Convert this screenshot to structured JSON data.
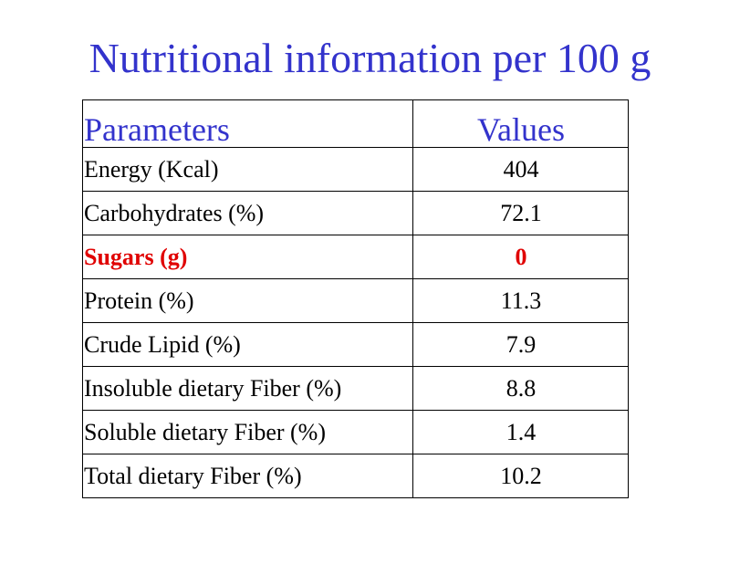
{
  "title": "Nutritional information per 100 g",
  "table": {
    "headers": [
      "Parameters",
      "Values"
    ],
    "rows": [
      {
        "parameter": "Energy (Kcal)",
        "value": "404"
      },
      {
        "parameter": "Carbohydrates (%)",
        "value": "72.1"
      },
      {
        "parameter": "Sugars (g)",
        "value": "0",
        "highlighted": true
      },
      {
        "parameter": "Protein (%)",
        "value": "11.3"
      },
      {
        "parameter": "Crude Lipid (%)",
        "value": "7.9"
      },
      {
        "parameter": "Insoluble dietary Fiber (%)",
        "value": "8.8"
      },
      {
        "parameter": "Soluble dietary Fiber (%)",
        "value": "1.4"
      },
      {
        "parameter": "Total dietary Fiber (%)",
        "value": "10.2"
      }
    ]
  },
  "colors": {
    "title": "#3333cc",
    "header": "#3333cc",
    "highlight": "#e00000",
    "text": "#000000"
  }
}
